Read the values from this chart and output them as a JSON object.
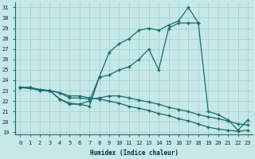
{
  "xlabel": "Humidex (Indice chaleur)",
  "bg_color": "#c5e8e8",
  "grid_color": "#a8d0d0",
  "line_color": "#1a6b6b",
  "xlim": [
    -0.5,
    23.5
  ],
  "ylim": [
    18.8,
    31.5
  ],
  "yticks": [
    19,
    20,
    21,
    22,
    23,
    24,
    25,
    26,
    27,
    28,
    29,
    30,
    31
  ],
  "xticks": [
    0,
    1,
    2,
    3,
    4,
    5,
    6,
    7,
    8,
    9,
    10,
    11,
    12,
    13,
    14,
    15,
    16,
    17,
    18,
    19,
    20,
    21,
    22,
    23
  ],
  "line1_x": [
    0,
    1,
    2,
    3,
    4,
    5,
    6,
    7,
    8,
    9,
    10,
    11,
    12,
    13,
    14,
    15,
    16,
    17,
    18
  ],
  "line1_y": [
    23.3,
    23.3,
    23.0,
    23.0,
    22.2,
    21.7,
    21.7,
    22.0,
    24.3,
    26.7,
    27.5,
    28.0,
    28.8,
    29.0,
    28.8,
    29.3,
    29.7,
    31.0,
    29.5
  ],
  "line2_x": [
    0,
    1,
    2,
    3,
    4,
    5,
    6,
    7,
    8,
    9,
    10,
    11,
    12,
    13,
    14,
    15,
    16,
    17,
    18,
    19,
    20,
    21,
    22,
    23
  ],
  "line2_y": [
    23.3,
    23.3,
    23.1,
    23.0,
    22.8,
    22.3,
    22.3,
    22.2,
    22.3,
    22.5,
    22.5,
    22.3,
    22.1,
    21.9,
    21.7,
    21.4,
    21.2,
    21.0,
    20.7,
    20.5,
    20.3,
    20.1,
    19.8,
    19.7
  ],
  "line3_x": [
    0,
    1,
    2,
    3,
    4,
    5,
    6,
    7,
    8,
    9,
    10,
    11,
    12,
    13,
    14,
    15,
    16,
    17,
    18,
    19,
    20,
    21,
    22,
    23
  ],
  "line3_y": [
    23.3,
    23.3,
    23.1,
    23.0,
    22.8,
    22.5,
    22.5,
    22.3,
    22.2,
    22.0,
    21.8,
    21.5,
    21.3,
    21.1,
    20.8,
    20.6,
    20.3,
    20.1,
    19.8,
    19.5,
    19.3,
    19.2,
    19.1,
    19.2
  ],
  "line4_x": [
    0,
    3,
    4,
    5,
    6,
    7,
    8,
    9,
    10,
    11,
    12,
    13,
    14,
    15,
    16,
    17,
    18,
    19,
    20,
    21,
    22,
    23
  ],
  "line4_y": [
    23.3,
    23.0,
    22.2,
    21.8,
    21.7,
    21.5,
    24.3,
    24.5,
    25.0,
    25.3,
    26.0,
    27.0,
    25.0,
    29.0,
    29.5,
    29.5,
    29.5,
    21.0,
    20.7,
    20.2,
    19.2,
    20.2
  ]
}
